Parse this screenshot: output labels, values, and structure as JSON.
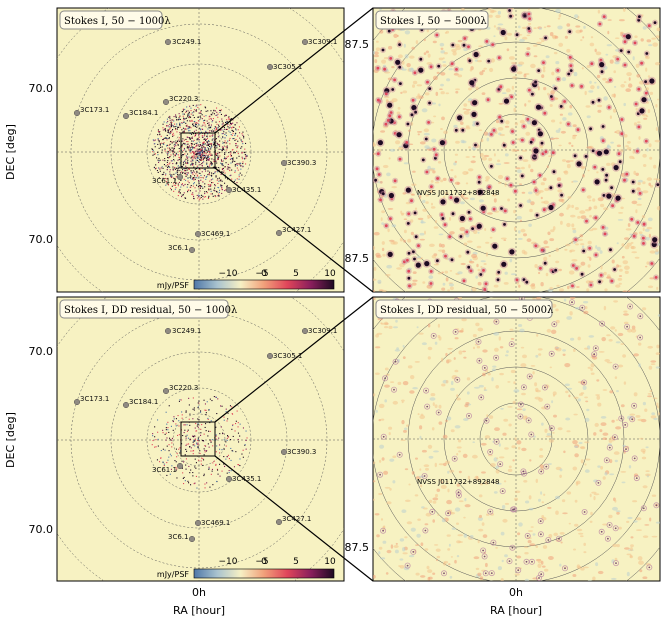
{
  "axis": {
    "ylabel": "DEC [deg]",
    "xlabel": "RA [hour]",
    "left_ticks": [
      "70.0",
      "70.0"
    ],
    "right_ticks": [
      "87.5",
      "87.5"
    ],
    "ra_tick": "0h"
  },
  "panels": {
    "top_left": {
      "title": "Stokes I, 50 − 1000λ"
    },
    "top_right": {
      "title": "Stokes I, 50 − 5000λ",
      "source": "NVSS J011732+892848"
    },
    "bottom_left": {
      "title": "Stokes I, DD residual, 50 − 1000λ"
    },
    "bottom_right": {
      "title": "Stokes I, DD residual, 50 − 5000λ",
      "source": "NVSS J011732+892848"
    }
  },
  "sources": [
    {
      "name": "3C249.1"
    },
    {
      "name": "3C309.1"
    },
    {
      "name": "3C305.1"
    },
    {
      "name": "3C173.1"
    },
    {
      "name": "3C184.1"
    },
    {
      "name": "3C220.3"
    },
    {
      "name": "3C390.3"
    },
    {
      "name": "3C61.1"
    },
    {
      "name": "3C435.1"
    },
    {
      "name": "3C427.1"
    },
    {
      "name": "3C469.1"
    },
    {
      "name": "3C6.1"
    }
  ],
  "colorbar": {
    "label": "mJy/PSF",
    "ticks": [
      "−10",
      "−5",
      "0",
      "5",
      "10"
    ],
    "range": [
      -10,
      10
    ],
    "colors": [
      "#4f77a8",
      "#a9c3cf",
      "#f6f0c4",
      "#f1a07a",
      "#e0455a",
      "#8a1f5c",
      "#1e0a22"
    ]
  },
  "colors": {
    "background": "#f7f2c2",
    "grid": "#555555",
    "source_marker": "#8f8a82"
  }
}
